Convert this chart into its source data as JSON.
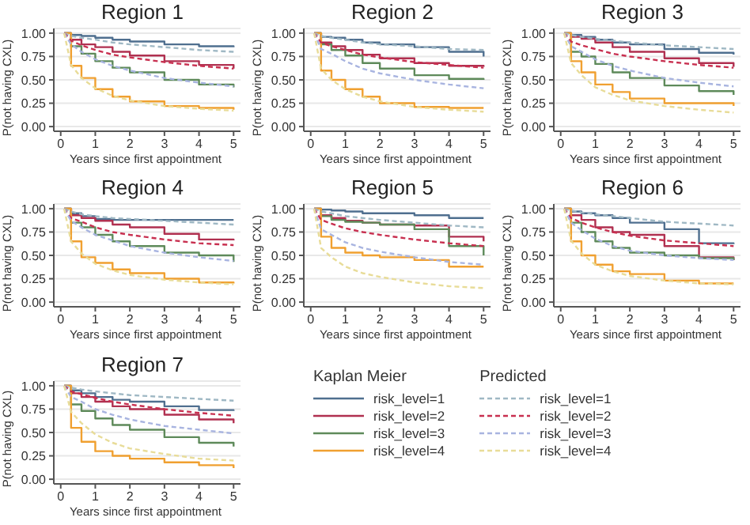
{
  "chart_data": [
    {
      "type": "line",
      "title": "Region 1",
      "xlabel": "Years since first appointment",
      "ylabel": "P(not having CXL)",
      "x": [
        0.1,
        0.3,
        0.6,
        1,
        1.5,
        2,
        3,
        4,
        5
      ],
      "xlim": [
        -0.2,
        5.2
      ],
      "xticks": [
        0,
        1,
        2,
        3,
        4,
        5
      ],
      "ylim": [
        -0.05,
        1.05
      ],
      "yticks": [
        {
          "value": 0,
          "label": "0.00"
        },
        {
          "value": 0.25,
          "label": "0.25"
        },
        {
          "value": 0.5,
          "label": "0.50"
        },
        {
          "value": 0.75,
          "label": "0.75"
        },
        {
          "value": 1,
          "label": "1.00"
        }
      ],
      "grid": "y",
      "marker": "none",
      "legend": false,
      "series": [
        {
          "type": "step",
          "color": "#4f6f8f",
          "values": [
            1,
            0.98,
            0.97,
            0.95,
            0.93,
            0.91,
            0.88,
            0.86,
            0.85
          ]
        },
        {
          "type": "step",
          "color": "#b03050",
          "values": [
            1,
            0.93,
            0.88,
            0.85,
            0.8,
            0.76,
            0.7,
            0.66,
            0.62
          ]
        },
        {
          "type": "step",
          "color": "#5e8a5a",
          "values": [
            1,
            0.86,
            0.78,
            0.7,
            0.63,
            0.58,
            0.5,
            0.45,
            0.42
          ]
        },
        {
          "type": "step",
          "color": "#f0a030",
          "values": [
            1,
            0.65,
            0.52,
            0.4,
            0.32,
            0.27,
            0.22,
            0.2,
            0.18
          ]
        },
        {
          "type": "line",
          "line_style": "dashed",
          "color": "#9fb8c4",
          "values": [
            1,
            0.97,
            0.95,
            0.93,
            0.9,
            0.88,
            0.85,
            0.82,
            0.8
          ]
        },
        {
          "type": "line",
          "line_style": "dashed",
          "color": "#c83050",
          "values": [
            1,
            0.92,
            0.87,
            0.82,
            0.77,
            0.74,
            0.69,
            0.65,
            0.62
          ]
        },
        {
          "type": "line",
          "line_style": "dashed",
          "color": "#a8b4e0",
          "values": [
            1,
            0.88,
            0.8,
            0.72,
            0.65,
            0.6,
            0.52,
            0.47,
            0.43
          ]
        },
        {
          "type": "line",
          "line_style": "dashed",
          "color": "#e8dc98",
          "values": [
            1,
            0.66,
            0.52,
            0.41,
            0.33,
            0.28,
            0.22,
            0.19,
            0.17
          ]
        }
      ]
    },
    {
      "type": "line",
      "title": "Region 2",
      "xlabel": "Years since first appointment",
      "ylabel": "P(not having CXL)",
      "x": [
        0.1,
        0.3,
        0.6,
        1,
        1.5,
        2,
        3,
        4,
        5
      ],
      "xlim": [
        -0.2,
        5.2
      ],
      "xticks": [
        0,
        1,
        2,
        3,
        4,
        5
      ],
      "ylim": [
        -0.05,
        1.05
      ],
      "yticks": [
        {
          "value": 0,
          "label": "0.00"
        },
        {
          "value": 0.25,
          "label": "0.25"
        },
        {
          "value": 0.5,
          "label": "0.50"
        },
        {
          "value": 0.75,
          "label": "0.75"
        },
        {
          "value": 1,
          "label": "1.00"
        }
      ],
      "grid": "y",
      "marker": "none",
      "legend": false,
      "series": [
        {
          "type": "step",
          "color": "#4f6f8f",
          "values": [
            1,
            0.96,
            0.95,
            0.93,
            0.9,
            0.88,
            0.85,
            0.8,
            0.75
          ]
        },
        {
          "type": "step",
          "color": "#b03050",
          "values": [
            1,
            0.9,
            0.86,
            0.82,
            0.77,
            0.73,
            0.68,
            0.65,
            0.64
          ]
        },
        {
          "type": "step",
          "color": "#5e8a5a",
          "values": [
            1,
            0.88,
            0.82,
            0.76,
            0.68,
            0.62,
            0.55,
            0.51,
            0.5
          ]
        },
        {
          "type": "step",
          "color": "#f0a030",
          "values": [
            1,
            0.6,
            0.5,
            0.4,
            0.32,
            0.25,
            0.21,
            0.2,
            0.2
          ]
        },
        {
          "type": "line",
          "line_style": "dashed",
          "color": "#9fb8c4",
          "values": [
            1,
            0.97,
            0.95,
            0.93,
            0.9,
            0.88,
            0.86,
            0.83,
            0.82
          ]
        },
        {
          "type": "line",
          "line_style": "dashed",
          "color": "#c83050",
          "values": [
            1,
            0.9,
            0.86,
            0.82,
            0.77,
            0.74,
            0.69,
            0.66,
            0.63
          ]
        },
        {
          "type": "line",
          "line_style": "dashed",
          "color": "#a8b4e0",
          "values": [
            1,
            0.83,
            0.78,
            0.7,
            0.62,
            0.57,
            0.5,
            0.45,
            0.41
          ]
        },
        {
          "type": "line",
          "line_style": "dashed",
          "color": "#e8dc98",
          "values": [
            1,
            0.62,
            0.5,
            0.4,
            0.32,
            0.27,
            0.21,
            0.18,
            0.16
          ]
        }
      ]
    },
    {
      "type": "line",
      "title": "Region 3",
      "xlabel": "Years since first appointment",
      "ylabel": "P(not having CXL)",
      "x": [
        0.1,
        0.3,
        0.6,
        1,
        1.5,
        2,
        3,
        4,
        5
      ],
      "xlim": [
        -0.2,
        5.2
      ],
      "xticks": [
        0,
        1,
        2,
        3,
        4,
        5
      ],
      "ylim": [
        -0.05,
        1.05
      ],
      "yticks": [
        {
          "value": 0,
          "label": "0.00"
        },
        {
          "value": 0.25,
          "label": "0.25"
        },
        {
          "value": 0.5,
          "label": "0.50"
        },
        {
          "value": 0.75,
          "label": "0.75"
        },
        {
          "value": 1,
          "label": "1.00"
        }
      ],
      "grid": "y",
      "marker": "none",
      "legend": false,
      "series": [
        {
          "type": "step",
          "color": "#4f6f8f",
          "values": [
            1,
            0.98,
            0.96,
            0.93,
            0.9,
            0.88,
            0.83,
            0.79,
            0.77
          ]
        },
        {
          "type": "step",
          "color": "#b03050",
          "values": [
            1,
            0.96,
            0.94,
            0.9,
            0.85,
            0.8,
            0.73,
            0.68,
            0.64
          ]
        },
        {
          "type": "step",
          "color": "#5e8a5a",
          "values": [
            1,
            0.8,
            0.75,
            0.67,
            0.58,
            0.52,
            0.44,
            0.38,
            0.34
          ]
        },
        {
          "type": "step",
          "color": "#f0a030",
          "values": [
            1,
            0.7,
            0.58,
            0.45,
            0.37,
            0.3,
            0.25,
            0.25,
            0.22
          ]
        },
        {
          "type": "line",
          "line_style": "dashed",
          "color": "#9fb8c4",
          "values": [
            1,
            0.98,
            0.96,
            0.94,
            0.92,
            0.9,
            0.87,
            0.85,
            0.83
          ]
        },
        {
          "type": "line",
          "line_style": "dashed",
          "color": "#c83050",
          "values": [
            1,
            0.91,
            0.87,
            0.83,
            0.78,
            0.75,
            0.7,
            0.66,
            0.63
          ]
        },
        {
          "type": "line",
          "line_style": "dashed",
          "color": "#a8b4e0",
          "values": [
            1,
            0.86,
            0.8,
            0.72,
            0.65,
            0.6,
            0.52,
            0.47,
            0.43
          ]
        },
        {
          "type": "line",
          "line_style": "dashed",
          "color": "#e8dc98",
          "values": [
            1,
            0.68,
            0.55,
            0.42,
            0.34,
            0.28,
            0.22,
            0.18,
            0.15
          ]
        }
      ]
    },
    {
      "type": "line",
      "title": "Region 4",
      "xlabel": "Years since first appointment",
      "ylabel": "P(not having CXL)",
      "x": [
        0.1,
        0.3,
        0.6,
        1,
        1.5,
        2,
        3,
        4,
        5
      ],
      "xlim": [
        -0.2,
        5.2
      ],
      "xticks": [
        0,
        1,
        2,
        3,
        4,
        5
      ],
      "ylim": [
        -0.05,
        1.05
      ],
      "yticks": [
        {
          "value": 0,
          "label": "0.00"
        },
        {
          "value": 0.25,
          "label": "0.25"
        },
        {
          "value": 0.5,
          "label": "0.50"
        },
        {
          "value": 0.75,
          "label": "0.75"
        },
        {
          "value": 1,
          "label": "1.00"
        }
      ],
      "grid": "y",
      "marker": "none",
      "legend": false,
      "series": [
        {
          "type": "step",
          "color": "#4f6f8f",
          "values": [
            1,
            0.95,
            0.92,
            0.89,
            0.88,
            0.88,
            0.88,
            0.88,
            0.88
          ]
        },
        {
          "type": "step",
          "color": "#b03050",
          "values": [
            1,
            0.93,
            0.9,
            0.87,
            0.83,
            0.8,
            0.73,
            0.67,
            0.66
          ]
        },
        {
          "type": "step",
          "color": "#5e8a5a",
          "values": [
            1,
            0.85,
            0.8,
            0.72,
            0.65,
            0.6,
            0.53,
            0.5,
            0.43
          ]
        },
        {
          "type": "step",
          "color": "#f0a030",
          "values": [
            1,
            0.65,
            0.48,
            0.42,
            0.35,
            0.31,
            0.25,
            0.21,
            0.2
          ]
        },
        {
          "type": "line",
          "line_style": "dashed",
          "color": "#9fb8c4",
          "values": [
            1,
            0.97,
            0.94,
            0.92,
            0.9,
            0.89,
            0.87,
            0.85,
            0.83
          ]
        },
        {
          "type": "line",
          "line_style": "dashed",
          "color": "#c83050",
          "values": [
            1,
            0.9,
            0.86,
            0.8,
            0.75,
            0.72,
            0.67,
            0.63,
            0.61
          ]
        },
        {
          "type": "line",
          "line_style": "dashed",
          "color": "#a8b4e0",
          "values": [
            1,
            0.87,
            0.8,
            0.72,
            0.66,
            0.6,
            0.53,
            0.48,
            0.44
          ]
        },
        {
          "type": "line",
          "line_style": "dashed",
          "color": "#e8dc98",
          "values": [
            1,
            0.65,
            0.52,
            0.41,
            0.34,
            0.29,
            0.24,
            0.21,
            0.19
          ]
        }
      ]
    },
    {
      "type": "line",
      "title": "Region 5",
      "xlabel": "Years since first appointment",
      "ylabel": "P(not having CXL)",
      "x": [
        0.1,
        0.3,
        0.6,
        1,
        1.5,
        2,
        3,
        4,
        5
      ],
      "xlim": [
        -0.2,
        5.2
      ],
      "xticks": [
        0,
        1,
        2,
        3,
        4,
        5
      ],
      "ylim": [
        -0.05,
        1.05
      ],
      "yticks": [
        {
          "value": 0,
          "label": "0.00"
        },
        {
          "value": 0.25,
          "label": "0.25"
        },
        {
          "value": 0.5,
          "label": "0.50"
        },
        {
          "value": 0.75,
          "label": "0.75"
        },
        {
          "value": 1,
          "label": "1.00"
        }
      ],
      "grid": "y",
      "marker": "none",
      "legend": false,
      "series": [
        {
          "type": "step",
          "color": "#4f6f8f",
          "values": [
            1,
            0.99,
            0.98,
            0.97,
            0.95,
            0.95,
            0.93,
            0.9,
            0.9
          ]
        },
        {
          "type": "step",
          "color": "#b03050",
          "values": [
            1,
            0.93,
            0.9,
            0.87,
            0.85,
            0.83,
            0.82,
            0.7,
            0.65
          ]
        },
        {
          "type": "step",
          "color": "#5e8a5a",
          "values": [
            1,
            0.92,
            0.88,
            0.86,
            0.85,
            0.83,
            0.78,
            0.6,
            0.5
          ]
        },
        {
          "type": "step",
          "color": "#f0a030",
          "values": [
            1,
            0.7,
            0.58,
            0.53,
            0.5,
            0.48,
            0.45,
            0.38,
            0.38
          ]
        },
        {
          "type": "line",
          "line_style": "dashed",
          "color": "#9fb8c4",
          "values": [
            1,
            0.97,
            0.95,
            0.92,
            0.9,
            0.88,
            0.85,
            0.82,
            0.8
          ]
        },
        {
          "type": "line",
          "line_style": "dashed",
          "color": "#c83050",
          "values": [
            1,
            0.88,
            0.84,
            0.79,
            0.75,
            0.72,
            0.67,
            0.63,
            0.6
          ]
        },
        {
          "type": "line",
          "line_style": "dashed",
          "color": "#a8b4e0",
          "values": [
            1,
            0.78,
            0.72,
            0.64,
            0.58,
            0.54,
            0.48,
            0.43,
            0.4
          ]
        },
        {
          "type": "line",
          "line_style": "dashed",
          "color": "#e8dc98",
          "values": [
            1,
            0.58,
            0.48,
            0.38,
            0.31,
            0.27,
            0.21,
            0.17,
            0.15
          ]
        }
      ]
    },
    {
      "type": "line",
      "title": "Region 6",
      "xlabel": "Years since first appointment",
      "ylabel": "P(not having CXL)",
      "x": [
        0.1,
        0.3,
        0.6,
        1,
        1.5,
        2,
        3,
        4,
        5
      ],
      "xlim": [
        -0.2,
        5.2
      ],
      "xticks": [
        0,
        1,
        2,
        3,
        4,
        5
      ],
      "ylim": [
        -0.05,
        1.05
      ],
      "yticks": [
        {
          "value": 0,
          "label": "0.00"
        },
        {
          "value": 0.25,
          "label": "0.25"
        },
        {
          "value": 0.5,
          "label": "0.50"
        },
        {
          "value": 0.75,
          "label": "0.75"
        },
        {
          "value": 1,
          "label": "1.00"
        }
      ],
      "grid": "y",
      "marker": "none",
      "legend": false,
      "series": [
        {
          "type": "step",
          "color": "#4f6f8f",
          "values": [
            1,
            0.97,
            0.95,
            0.93,
            0.9,
            0.85,
            0.78,
            0.63,
            0.62
          ]
        },
        {
          "type": "step",
          "color": "#b03050",
          "values": [
            1,
            0.93,
            0.88,
            0.8,
            0.75,
            0.72,
            0.6,
            0.48,
            0.45
          ]
        },
        {
          "type": "step",
          "color": "#5e8a5a",
          "values": [
            1,
            0.85,
            0.75,
            0.65,
            0.58,
            0.53,
            0.5,
            0.47,
            0.45
          ]
        },
        {
          "type": "step",
          "color": "#f0a030",
          "values": [
            1,
            0.65,
            0.5,
            0.4,
            0.33,
            0.3,
            0.23,
            0.2,
            0.2
          ]
        },
        {
          "type": "line",
          "line_style": "dashed",
          "color": "#9fb8c4",
          "values": [
            1,
            0.98,
            0.96,
            0.94,
            0.92,
            0.9,
            0.86,
            0.84,
            0.82
          ]
        },
        {
          "type": "line",
          "line_style": "dashed",
          "color": "#c83050",
          "values": [
            1,
            0.9,
            0.85,
            0.8,
            0.75,
            0.71,
            0.66,
            0.63,
            0.6
          ]
        },
        {
          "type": "line",
          "line_style": "dashed",
          "color": "#a8b4e0",
          "values": [
            1,
            0.85,
            0.77,
            0.68,
            0.6,
            0.55,
            0.5,
            0.47,
            0.45
          ]
        },
        {
          "type": "line",
          "line_style": "dashed",
          "color": "#e8dc98",
          "values": [
            1,
            0.66,
            0.52,
            0.4,
            0.33,
            0.28,
            0.23,
            0.2,
            0.19
          ]
        }
      ]
    },
    {
      "type": "line",
      "title": "Region 7",
      "xlabel": "Years since first appointment",
      "ylabel": "P(not having CXL)",
      "annotations": [
        "Kaplan Meier",
        "Predicted"
      ],
      "x": [
        0.1,
        0.3,
        0.6,
        1,
        1.5,
        2,
        3,
        4,
        5
      ],
      "xlim": [
        -0.2,
        5.2
      ],
      "xticks": [
        0,
        1,
        2,
        3,
        4,
        5
      ],
      "ylim": [
        -0.05,
        1.05
      ],
      "yticks": [
        {
          "value": 0,
          "label": "0.00"
        },
        {
          "value": 0.25,
          "label": "0.25"
        },
        {
          "value": 0.5,
          "label": "0.50"
        },
        {
          "value": 0.75,
          "label": "0.75"
        },
        {
          "value": 1,
          "label": "1.00"
        }
      ],
      "grid": "y",
      "marker": "none",
      "legend": "right",
      "series": [
        {
          "type": "step",
          "name": "risk_level=1",
          "color": "#4f6f8f",
          "values": [
            1,
            0.95,
            0.92,
            0.88,
            0.85,
            0.83,
            0.78,
            0.74,
            0.73
          ]
        },
        {
          "type": "step",
          "name": "risk_level=2",
          "color": "#b03050",
          "values": [
            1,
            0.92,
            0.88,
            0.83,
            0.78,
            0.75,
            0.69,
            0.64,
            0.6
          ]
        },
        {
          "type": "step",
          "name": "risk_level=3",
          "color": "#5e8a5a",
          "values": [
            1,
            0.8,
            0.73,
            0.65,
            0.58,
            0.53,
            0.45,
            0.39,
            0.35
          ]
        },
        {
          "type": "step",
          "name": "risk_level=4",
          "color": "#f0a030",
          "values": [
            1,
            0.55,
            0.4,
            0.3,
            0.25,
            0.22,
            0.18,
            0.15,
            0.12
          ]
        },
        {
          "type": "line",
          "name": "risk_level=1",
          "line_style": "dashed",
          "color": "#9fb8c4",
          "values": [
            1,
            0.98,
            0.96,
            0.94,
            0.92,
            0.9,
            0.88,
            0.86,
            0.84
          ]
        },
        {
          "type": "line",
          "name": "risk_level=2",
          "line_style": "dashed",
          "color": "#c83050",
          "values": [
            1,
            0.94,
            0.91,
            0.87,
            0.83,
            0.8,
            0.75,
            0.71,
            0.68
          ]
        },
        {
          "type": "line",
          "name": "risk_level=3",
          "line_style": "dashed",
          "color": "#a8b4e0",
          "values": [
            1,
            0.88,
            0.83,
            0.75,
            0.69,
            0.64,
            0.57,
            0.53,
            0.49
          ]
        },
        {
          "type": "line",
          "name": "risk_level=4",
          "line_style": "dashed",
          "color": "#e8dc98",
          "values": [
            1,
            0.72,
            0.6,
            0.48,
            0.39,
            0.33,
            0.27,
            0.22,
            0.2
          ]
        }
      ]
    }
  ]
}
